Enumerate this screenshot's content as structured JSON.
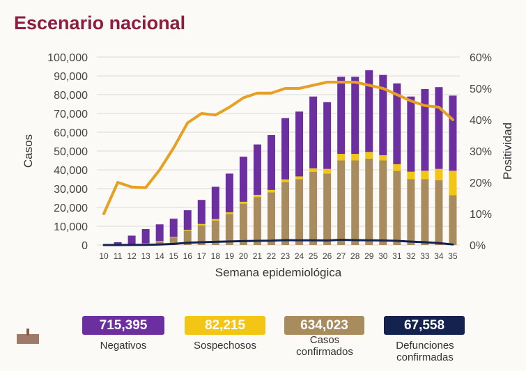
{
  "title": "Escenario nacional",
  "chart_data": {
    "type": "bar",
    "stacked": true,
    "title": "",
    "xlabel": "Semana epidemiológica",
    "ylabel": "Casos",
    "y2label": "Positividad",
    "ylim": [
      0,
      100000
    ],
    "y2lim": [
      0,
      60
    ],
    "yticks": [
      "0",
      "10,000",
      "20,000",
      "30,000",
      "40,000",
      "50,000",
      "60,000",
      "70,000",
      "80,000",
      "90,000",
      "100,000"
    ],
    "y2ticks": [
      "0%",
      "10%",
      "20%",
      "30%",
      "40%",
      "50%",
      "60%"
    ],
    "grid": true,
    "categories": [
      "10",
      "11",
      "12",
      "13",
      "14",
      "15",
      "16",
      "17",
      "18",
      "19",
      "20",
      "21",
      "22",
      "23",
      "24",
      "25",
      "26",
      "27",
      "28",
      "29",
      "30",
      "31",
      "32",
      "33",
      "34",
      "35"
    ],
    "series": [
      {
        "name": "Casos confirmados",
        "type": "bar",
        "color": "#a88c5e",
        "values": [
          0,
          0,
          300,
          800,
          2000,
          4000,
          7500,
          10500,
          13000,
          16500,
          22000,
          25500,
          28000,
          33500,
          35000,
          39000,
          38000,
          45000,
          45000,
          46000,
          45000,
          39500,
          35000,
          35000,
          34500,
          26500
        ]
      },
      {
        "name": "Sospechosos",
        "type": "bar",
        "color": "#f3c515",
        "values": [
          0,
          0,
          50,
          100,
          200,
          300,
          500,
          700,
          800,
          900,
          1000,
          1200,
          1300,
          1400,
          1500,
          1800,
          2500,
          3500,
          3500,
          3500,
          2800,
          3500,
          4000,
          4500,
          6000,
          13000
        ]
      },
      {
        "name": "Negativos",
        "type": "bar",
        "color": "#6b2fa0",
        "values": [
          0,
          1500,
          4650,
          7600,
          8800,
          9700,
          10500,
          12800,
          17200,
          20600,
          24000,
          26800,
          29200,
          32600,
          34500,
          38200,
          35500,
          41000,
          41000,
          43500,
          42700,
          43000,
          40000,
          43500,
          43500,
          40000
        ]
      },
      {
        "name": "Defunciones confirmadas",
        "type": "line",
        "axis": "left",
        "color": "#13224f",
        "values": [
          0,
          0,
          50,
          100,
          300,
          600,
          1200,
          1500,
          1700,
          1900,
          2100,
          2200,
          2300,
          2600,
          2500,
          2500,
          2400,
          2800,
          2600,
          2500,
          2400,
          2200,
          1800,
          1500,
          1000,
          300
        ]
      },
      {
        "name": "Positividad",
        "type": "line",
        "axis": "right",
        "unit": "%",
        "color": "#e8a023",
        "values": [
          10,
          20,
          18.5,
          18.3,
          24,
          31,
          39,
          42,
          41.5,
          44,
          47,
          48.5,
          48.5,
          50,
          50,
          51,
          52,
          52,
          52,
          51,
          50,
          48,
          46,
          44.5,
          44,
          40
        ]
      }
    ]
  },
  "legend": [
    {
      "value": "715,395",
      "label": "Negativos",
      "color": "#6b2fa0"
    },
    {
      "value": "82,215",
      "label": "Sospechosos",
      "color": "#f3c515"
    },
    {
      "value": "634,023",
      "label": "Casos confirmados",
      "color": "#a88c5e"
    },
    {
      "value": "67,558",
      "label": "Defunciones confirmadas",
      "color": "#13224f"
    }
  ]
}
